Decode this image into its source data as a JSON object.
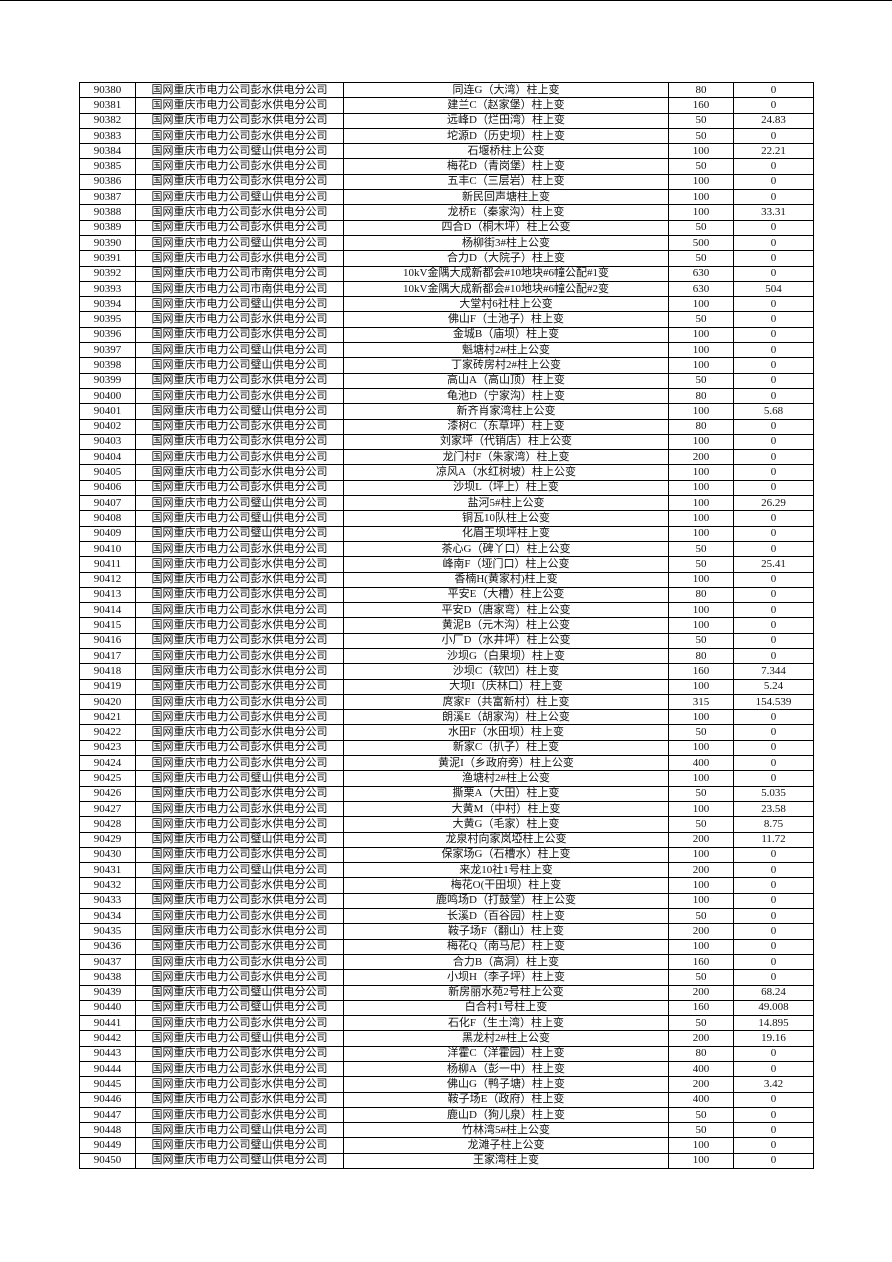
{
  "companies": {
    "P": "国网重庆市电力公司彭水供电分公司",
    "B": "国网重庆市电力公司璧山供电分公司",
    "S": "国网重庆市电力公司市南供电分公司"
  },
  "rows": [
    [
      "90380",
      "国网重庆市电力公司彭水供电分公司",
      "同连G（大湾）柱上变",
      "80",
      "0"
    ],
    [
      "90381",
      "国网重庆市电力公司彭水供电分公司",
      "建兰C（赵家堡）柱上变",
      "160",
      "0"
    ],
    [
      "90382",
      "国网重庆市电力公司彭水供电分公司",
      "远峰D（烂田湾）柱上变",
      "50",
      "24.83"
    ],
    [
      "90383",
      "国网重庆市电力公司彭水供电分公司",
      "坨源D（历史坝）柱上变",
      "50",
      "0"
    ],
    [
      "90384",
      "国网重庆市电力公司璧山供电分公司",
      "石堰桥柱上公变",
      "100",
      "22.21"
    ],
    [
      "90385",
      "国网重庆市电力公司彭水供电分公司",
      "梅花D（青岗堡）柱上变",
      "50",
      "0"
    ],
    [
      "90386",
      "国网重庆市电力公司彭水供电分公司",
      "五丰C（三层岩）柱上变",
      "100",
      "0"
    ],
    [
      "90387",
      "国网重庆市电力公司璧山供电分公司",
      "新民回声塘柱上变",
      "100",
      "0"
    ],
    [
      "90388",
      "国网重庆市电力公司彭水供电分公司",
      "龙桥E（秦家沟）柱上变",
      "100",
      "33.31"
    ],
    [
      "90389",
      "国网重庆市电力公司彭水供电分公司",
      "四合D（桐木坪）柱上公变",
      "50",
      "0"
    ],
    [
      "90390",
      "国网重庆市电力公司璧山供电分公司",
      "杨柳街3#柱上公变",
      "500",
      "0"
    ],
    [
      "90391",
      "国网重庆市电力公司彭水供电分公司",
      "合力D（大院子）柱上变",
      "50",
      "0"
    ],
    [
      "90392",
      "国网重庆市电力公司市南供电分公司",
      "10kV金隅大成新都会#10地块#6幢公配#1变",
      "630",
      "0"
    ],
    [
      "90393",
      "国网重庆市电力公司市南供电分公司",
      "10kV金隅大成新都会#10地块#6幢公配#2变",
      "630",
      "504"
    ],
    [
      "90394",
      "国网重庆市电力公司璧山供电分公司",
      "大堂村6社柱上公变",
      "100",
      "0"
    ],
    [
      "90395",
      "国网重庆市电力公司彭水供电分公司",
      "佛山F（土池子）柱上变",
      "50",
      "0"
    ],
    [
      "90396",
      "国网重庆市电力公司彭水供电分公司",
      "金城B（庙坝）柱上变",
      "100",
      "0"
    ],
    [
      "90397",
      "国网重庆市电力公司璧山供电分公司",
      "魁塘村2#柱上公变",
      "100",
      "0"
    ],
    [
      "90398",
      "国网重庆市电力公司璧山供电分公司",
      "丁家砖房村2#柱上公变",
      "100",
      "0"
    ],
    [
      "90399",
      "国网重庆市电力公司彭水供电分公司",
      "高山A（高山顶）柱上变",
      "50",
      "0"
    ],
    [
      "90400",
      "国网重庆市电力公司彭水供电分公司",
      "龟池D（宁家沟）柱上变",
      "80",
      "0"
    ],
    [
      "90401",
      "国网重庆市电力公司璧山供电分公司",
      "新齐肖家湾柱上公变",
      "100",
      "5.68"
    ],
    [
      "90402",
      "国网重庆市电力公司彭水供电分公司",
      "漆树C（东草坪）柱上变",
      "80",
      "0"
    ],
    [
      "90403",
      "国网重庆市电力公司彭水供电分公司",
      "刘家坪（代销店）柱上公变",
      "100",
      "0"
    ],
    [
      "90404",
      "国网重庆市电力公司彭水供电分公司",
      "龙门村F（朱家湾）柱上变",
      "200",
      "0"
    ],
    [
      "90405",
      "国网重庆市电力公司彭水供电分公司",
      "凉风A（水红树坡）柱上公变",
      "100",
      "0"
    ],
    [
      "90406",
      "国网重庆市电力公司彭水供电分公司",
      "沙坝L（坪上）柱上变",
      "100",
      "0"
    ],
    [
      "90407",
      "国网重庆市电力公司璧山供电分公司",
      "盐河5#柱上公变",
      "100",
      "26.29"
    ],
    [
      "90408",
      "国网重庆市电力公司璧山供电分公司",
      "铜瓦10队柱上公变",
      "100",
      "0"
    ],
    [
      "90409",
      "国网重庆市电力公司璧山供电分公司",
      "化眉王坝坪柱上变",
      "100",
      "0"
    ],
    [
      "90410",
      "国网重庆市电力公司彭水供电分公司",
      "茶心G（碑丫口）柱上公变",
      "50",
      "0"
    ],
    [
      "90411",
      "国网重庆市电力公司彭水供电分公司",
      "峰南F（垭门口）柱上公变",
      "50",
      "25.41"
    ],
    [
      "90412",
      "国网重庆市电力公司彭水供电分公司",
      "香楠H(黄家村)柱上变",
      "100",
      "0"
    ],
    [
      "90413",
      "国网重庆市电力公司彭水供电分公司",
      "平安E（大槽）柱上公变",
      "80",
      "0"
    ],
    [
      "90414",
      "国网重庆市电力公司彭水供电分公司",
      "平安D（唐家弯）柱上公变",
      "100",
      "0"
    ],
    [
      "90415",
      "国网重庆市电力公司彭水供电分公司",
      "黄泥B（元木沟）柱上公变",
      "100",
      "0"
    ],
    [
      "90416",
      "国网重庆市电力公司彭水供电分公司",
      "小厂D（水井坪）柱上公变",
      "50",
      "0"
    ],
    [
      "90417",
      "国网重庆市电力公司彭水供电分公司",
      "沙坝G（白果坝）柱上变",
      "80",
      "0"
    ],
    [
      "90418",
      "国网重庆市电力公司彭水供电分公司",
      "沙坝C（软凹）柱上变",
      "160",
      "7.344"
    ],
    [
      "90419",
      "国网重庆市电力公司彭水供电分公司",
      "大坝I（庆林口）柱上变",
      "100",
      "5.24"
    ],
    [
      "90420",
      "国网重庆市电力公司彭水供电分公司",
      "庹家F（共富新村）柱上变",
      "315",
      "154.539"
    ],
    [
      "90421",
      "国网重庆市电力公司彭水供电分公司",
      "朗溪E（胡家沟）柱上公变",
      "100",
      "0"
    ],
    [
      "90422",
      "国网重庆市电力公司彭水供电分公司",
      "水田F（水田坝）柱上变",
      "50",
      "0"
    ],
    [
      "90423",
      "国网重庆市电力公司彭水供电分公司",
      "新家C（扒子）柱上变",
      "100",
      "0"
    ],
    [
      "90424",
      "国网重庆市电力公司彭水供电分公司",
      "黄泥I（乡政府旁）柱上公变",
      "400",
      "0"
    ],
    [
      "90425",
      "国网重庆市电力公司璧山供电分公司",
      "渔塘村2#柱上公变",
      "100",
      "0"
    ],
    [
      "90426",
      "国网重庆市电力公司彭水供电分公司",
      "撕栗A（大田）柱上变",
      "50",
      "5.035"
    ],
    [
      "90427",
      "国网重庆市电力公司彭水供电分公司",
      "大黄M（中村）柱上变",
      "100",
      "23.58"
    ],
    [
      "90428",
      "国网重庆市电力公司彭水供电分公司",
      "大黄G（毛家）柱上变",
      "50",
      "8.75"
    ],
    [
      "90429",
      "国网重庆市电力公司璧山供电分公司",
      "龙泉村向家岚埡柱上公变",
      "200",
      "11.72"
    ],
    [
      "90430",
      "国网重庆市电力公司彭水供电分公司",
      "保家场G（石槽水）柱上变",
      "100",
      "0"
    ],
    [
      "90431",
      "国网重庆市电力公司璧山供电分公司",
      "来龙10社1号柱上变",
      "200",
      "0"
    ],
    [
      "90432",
      "国网重庆市电力公司彭水供电分公司",
      "梅花O(干田坝）柱上变",
      "100",
      "0"
    ],
    [
      "90433",
      "国网重庆市电力公司彭水供电分公司",
      "鹿鸣场D（打鼓堂）柱上公变",
      "100",
      "0"
    ],
    [
      "90434",
      "国网重庆市电力公司彭水供电分公司",
      "长溪D（百谷园）柱上变",
      "50",
      "0"
    ],
    [
      "90435",
      "国网重庆市电力公司彭水供电分公司",
      "鞍子场F（翻山）柱上变",
      "200",
      "0"
    ],
    [
      "90436",
      "国网重庆市电力公司彭水供电分公司",
      "梅花Q（南马尼）柱上变",
      "100",
      "0"
    ],
    [
      "90437",
      "国网重庆市电力公司彭水供电分公司",
      "合力B（高洞）柱上变",
      "160",
      "0"
    ],
    [
      "90438",
      "国网重庆市电力公司彭水供电分公司",
      "小坝H（李子坪）柱上变",
      "50",
      "0"
    ],
    [
      "90439",
      "国网重庆市电力公司璧山供电分公司",
      "新房丽水苑2号柱上公变",
      "200",
      "68.24"
    ],
    [
      "90440",
      "国网重庆市电力公司璧山供电分公司",
      "白合村1号柱上变",
      "160",
      "49.008"
    ],
    [
      "90441",
      "国网重庆市电力公司彭水供电分公司",
      "石化F（生土湾）柱上变",
      "50",
      "14.895"
    ],
    [
      "90442",
      "国网重庆市电力公司璧山供电分公司",
      "黑龙村2#柱上公变",
      "200",
      "19.16"
    ],
    [
      "90443",
      "国网重庆市电力公司彭水供电分公司",
      "洋霍C（洋霍园）柱上变",
      "80",
      "0"
    ],
    [
      "90444",
      "国网重庆市电力公司彭水供电分公司",
      "杨柳A（彭一中）柱上变",
      "400",
      "0"
    ],
    [
      "90445",
      "国网重庆市电力公司彭水供电分公司",
      "佛山G（鸭子塘）柱上变",
      "200",
      "3.42"
    ],
    [
      "90446",
      "国网重庆市电力公司彭水供电分公司",
      "鞍子场E（政府）柱上变",
      "400",
      "0"
    ],
    [
      "90447",
      "国网重庆市电力公司彭水供电分公司",
      "鹿山D（狗儿泉）柱上变",
      "50",
      "0"
    ],
    [
      "90448",
      "国网重庆市电力公司璧山供电分公司",
      "竹林湾5#柱上公变",
      "50",
      "0"
    ],
    [
      "90449",
      "国网重庆市电力公司璧山供电分公司",
      "龙滩子柱上公变",
      "100",
      "0"
    ],
    [
      "90450",
      "国网重庆市电力公司璧山供电分公司",
      "王家湾柱上变",
      "100",
      "0"
    ]
  ]
}
